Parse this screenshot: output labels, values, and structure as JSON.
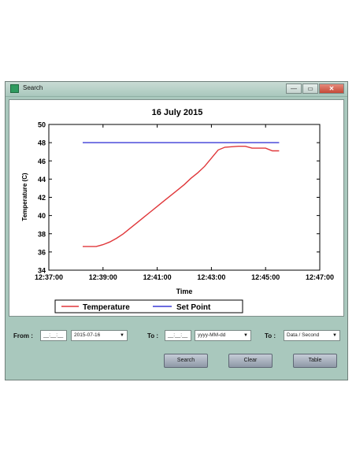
{
  "window": {
    "title": "Search",
    "minimize_label": "—",
    "maximize_label": "▭",
    "close_label": "✕"
  },
  "chart_data": {
    "type": "line",
    "title": "16 July 2015",
    "xlabel": "Time",
    "ylabel": "Temperature (C)",
    "xlim": [
      "12:37:00",
      "12:47:00"
    ],
    "ylim": [
      34,
      50
    ],
    "xticks": [
      "12:37:00",
      "12:39:00",
      "12:41:00",
      "12:43:00",
      "12:45:00",
      "12:47:00"
    ],
    "yticks": [
      34,
      36,
      38,
      40,
      42,
      44,
      46,
      48,
      50
    ],
    "legend_position": "bottom",
    "series": [
      {
        "name": "Temperature",
        "color": "#e0373a",
        "x": [
          "12:38:15",
          "12:38:45",
          "12:39:00",
          "12:39:15",
          "12:39:30",
          "12:39:45",
          "12:40:00",
          "12:40:15",
          "12:40:30",
          "12:40:45",
          "12:41:00",
          "12:41:15",
          "12:41:30",
          "12:41:45",
          "12:42:00",
          "12:42:15",
          "12:42:30",
          "12:42:45",
          "12:43:00",
          "12:43:15",
          "12:43:30",
          "12:44:00",
          "12:44:15",
          "12:44:30",
          "12:44:45",
          "12:45:00",
          "12:45:15",
          "12:45:30"
        ],
        "y": [
          36.6,
          36.6,
          36.8,
          37.1,
          37.5,
          38.0,
          38.6,
          39.2,
          39.8,
          40.4,
          41.0,
          41.6,
          42.2,
          42.8,
          43.4,
          44.1,
          44.7,
          45.4,
          46.3,
          47.2,
          47.5,
          47.6,
          47.6,
          47.4,
          47.4,
          47.4,
          47.1,
          47.1
        ]
      },
      {
        "name": "Set Point",
        "color": "#3a3ad6",
        "x": [
          "12:38:15",
          "12:45:30"
        ],
        "y": [
          48,
          48
        ]
      }
    ]
  },
  "controls": {
    "from_label": "From :",
    "from_time": "__:__:__",
    "from_date": "2015-07-16",
    "to_label": "To :",
    "to_time": "__:__:__",
    "to_date_placeholder": "yyyy-MM-dd",
    "to2_label": "To :",
    "output_mode": "Data / Second",
    "dropdown_arrow": "▼",
    "search_label": "Search",
    "clear_label": "Clear",
    "table_label": "Table"
  }
}
